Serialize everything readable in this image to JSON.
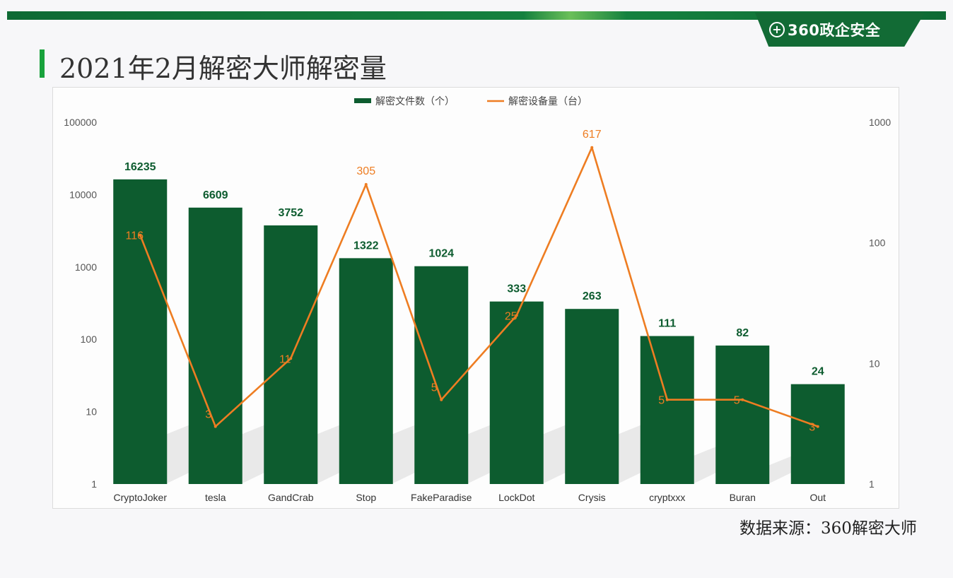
{
  "header": {
    "brand_icon": "+",
    "brand_text": "360政企安全",
    "title": "2021年2月解密大师解密量"
  },
  "footer": {
    "source": "数据来源：360解密大师"
  },
  "colors": {
    "bar": "#0d5c2f",
    "line": "#ee7d22",
    "bar_label": "#0d5c2f",
    "brand": "#126b35",
    "accent": "#18a23c"
  },
  "chart_data": {
    "type": "bar",
    "categories": [
      "CryptoJoker",
      "tesla",
      "GandCrab",
      "Stop",
      "FakeParadise",
      "LockDot",
      "Crysis",
      "cryptxxx",
      "Buran",
      "Out"
    ],
    "series": [
      {
        "name": "解密文件数（个）",
        "type": "bar",
        "axis": "left",
        "values": [
          16235,
          6609,
          3752,
          1322,
          1024,
          333,
          263,
          111,
          82,
          24
        ]
      },
      {
        "name": "解密设备量（台）",
        "type": "line",
        "axis": "right",
        "values": [
          116,
          3,
          11,
          305,
          5,
          25,
          617,
          5,
          5,
          3
        ]
      }
    ],
    "y_left": {
      "scale": "log",
      "ylim": [
        1,
        100000
      ],
      "ticks": [
        "1",
        "10",
        "100",
        "1000",
        "10000",
        "100000"
      ]
    },
    "y_right": {
      "scale": "log",
      "ylim": [
        1,
        1000
      ],
      "ticks": [
        "1",
        "10",
        "100",
        "1000"
      ]
    },
    "legend": "top-center",
    "grid": false
  }
}
